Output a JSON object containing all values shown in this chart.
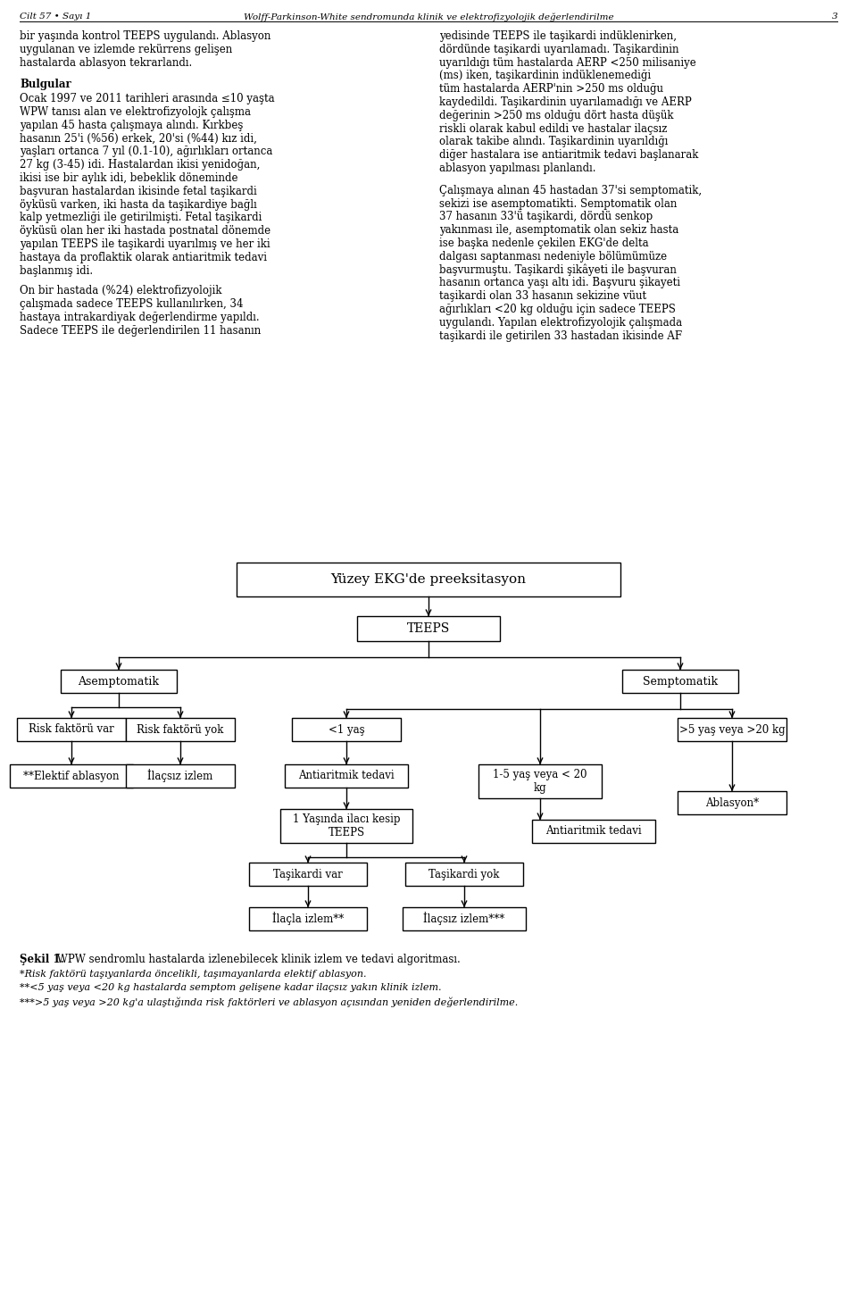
{
  "title_header": "Cilt 57 • Sayı 1",
  "title_header_right": "Wolff-Parkinson-White sendromunda klinik ve elektrofizyolojik değerlendirilme",
  "title_header_num": "3",
  "text_left": [
    "bir yaşında kontrol TEEPS uygulandı. Ablasyon",
    "uygulanan ve izlemde rekürrens gelişen",
    "hastalarda ablasyon tekrarlandı."
  ],
  "bulgular_title": "Bulgular",
  "bulgular_text": [
    "Ocak 1997 ve 2011 tarihleri arasında ≤10 yaşta",
    "WPW tanısı alan ve elektrofizyolojk çalışma",
    "yapılan 45 hasta çalışmaya alındı. Kırkbeş",
    "hasanın 25'i (%56) erkek, 20'si (%44) kız idi,",
    "yaşları ortanca 7 yıl (0.1-10), ağırlıkları ortanca",
    "27 kg (3-45) idi. Hastalardan ikisi yenidoğan,",
    "ikisi ise bir aylık idi, bebeklik döneminde",
    "başvuran hastalardan ikisinde fetal taşikardi",
    "öyküsü varken, iki hasta da taşikardiye bağlı",
    "kalp yetmezliği ile getirilmişti. Fetal taşikardi",
    "öyküsü olan her iki hastada postnatal dönemde",
    "yapılan TEEPS ile taşikardi uyarılmış ve her iki",
    "hastaya da proflaktik olarak antiaritmik tedavi",
    "başlanmış idi."
  ],
  "text_left2": [
    "On bir hastada (%24) elektrofizyolojik",
    "çalışmada sadece TEEPS kullanılırken, 34",
    "hastaya intrakardiyak değerlendirme yapıldı.",
    "Sadece TEEPS ile değerlendirilen 11 hasanın"
  ],
  "text_right": [
    "yedisinde TEEPS ile taşikardi indüklenirken,",
    "dördünde taşikardi uyarılamadı. Taşikardinin",
    "uyarıldığı tüm hastalarda AERP <250 milisaniye",
    "(ms) iken, taşikardinin indüklenemediği",
    "tüm hastalarda AERP'nin >250 ms olduğu",
    "kaydedildi. Taşikardinin uyarılamadığı ve AERP",
    "değerinin >250 ms olduğu dört hasta düşük",
    "riskli olarak kabul edildi ve hastalar ilaçsız",
    "olarak takibe alındı. Taşikardinin uyarıldığı",
    "diğer hastalara ise antiaritmik tedavi başlanarak",
    "ablasyon yapılması planlandı."
  ],
  "text_right2": [
    "Çalışmaya alınan 45 hastadan 37'si semptomatik,",
    "sekizi ise asemptomatikti. Semptomatik olan",
    "37 hasanın 33'ü taşikardi, dördü senkop",
    "yakınması ile, asemptomatik olan sekiz hasta",
    "ise başka nedenle çekilen EKG'de delta",
    "dalgası saptanması nedeniyle bölümümüze",
    "başvurmuştu. Taşikardi şikâyeti ile başvuran",
    "hasanın ortanca yaşı altı idi. Başvuru şikayeti",
    "taşikardi olan 33 hasanın sekizine vüut",
    "ağırlıkları <20 kg olduğu için sadece TEEPS",
    "uygulandı. Yapılan elektrofizyolojik çalışmada",
    "taşikardi ile getirilen 33 hastadan ikisinde AF"
  ],
  "flowchart_title": "Yüzey EKG'de preeksitasyon",
  "node_teeps": "TEEPS",
  "node_asemptomatik": "Asemptomatik",
  "node_semptomatik": "Semptomatik",
  "node_risk_var": "Risk faktörü var",
  "node_risk_yok": "Risk faktörü yok",
  "node_lt1yas": "<1 yaş",
  "node_1_5yas": "1-5 yaş veya < 20\nkg",
  "node_gt5yas": ">5 yaş veya >20 kg",
  "node_anti1": "Antiaritmik tedavi",
  "node_teeps2": "1 Yaşında ilacı kesip\nTEEPS",
  "node_ablasyon_star": "Ablasyon*",
  "node_anti2": "Antiaritmik tedavi",
  "node_tasikardi_var": "Taşikardi var",
  "node_tasikardi_yok": "Taşikardi yok",
  "node_elektif": "**Elektif ablasyon",
  "node_ilacsiz": "İlaçsız izlem",
  "node_ilacla_izlem": "İlaçla izlem**",
  "node_ilacsiz_izlem": "İlaçsız izlem***",
  "sekil_caption_bold": "Şekil 1.",
  "sekil_caption_rest": " WPW sendromlu hastalarda izlenebilecek klinik izlem ve tedavi algoritması.",
  "footnote1": "*Risk faktörü taşıyanlarda öncelikli, taşımayanlarda elektif ablasyon.",
  "footnote2": "**<5 yaş veya <20 kg hastalarda semptom gelişene kadar ilaçsız yakın klinik izlem.",
  "footnote3": "***>5 yaş veya >20 kg'a ulaştığında risk faktörleri ve ablasyon açısından yeniden değerlendirilme.",
  "bg_color": "#ffffff",
  "box_facecolor": "#ffffff",
  "box_edgecolor": "#000000",
  "text_color": "#000000",
  "arrow_color": "#000000"
}
